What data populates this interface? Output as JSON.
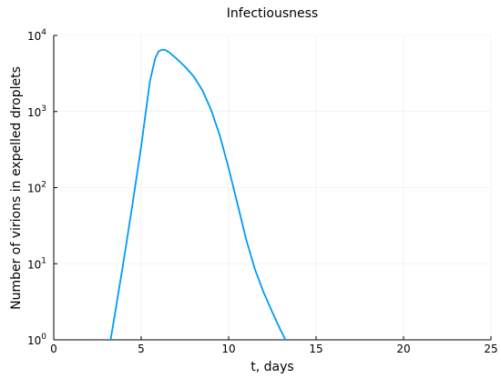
{
  "chart_data": {
    "type": "line",
    "title": "Infectiousness",
    "xlabel": "t, days",
    "ylabel": "Number of virions in expelled droplets",
    "xlim": [
      0,
      25
    ],
    "ylim": [
      1,
      10000
    ],
    "yscale": "log",
    "grid": true,
    "legend": "none",
    "x_ticks": [
      "0",
      "5",
      "10",
      "15",
      "20",
      "25"
    ],
    "y_ticks": [
      {
        "base": "10",
        "exp": "0"
      },
      {
        "base": "10",
        "exp": "1"
      },
      {
        "base": "10",
        "exp": "2"
      },
      {
        "base": "10",
        "exp": "3"
      },
      {
        "base": "10",
        "exp": "4"
      }
    ],
    "line_color": "#009AFA",
    "series": [
      {
        "x": [
          3.25,
          3.5,
          4.0,
          4.5,
          5.0,
          5.5,
          5.8,
          6.0,
          6.2,
          6.4,
          6.6,
          7.0,
          7.5,
          8.0,
          8.5,
          9.0,
          9.5,
          10.0,
          10.5,
          11.0,
          11.5,
          12.0,
          12.5,
          13.0,
          13.25
        ],
        "y": [
          1,
          2.2,
          11,
          60,
          350,
          2500,
          5000,
          6200,
          6500,
          6400,
          6000,
          5000,
          3900,
          2900,
          1900,
          1050,
          480,
          180,
          62,
          21,
          8.5,
          4.2,
          2.3,
          1.3,
          1
        ]
      }
    ]
  }
}
